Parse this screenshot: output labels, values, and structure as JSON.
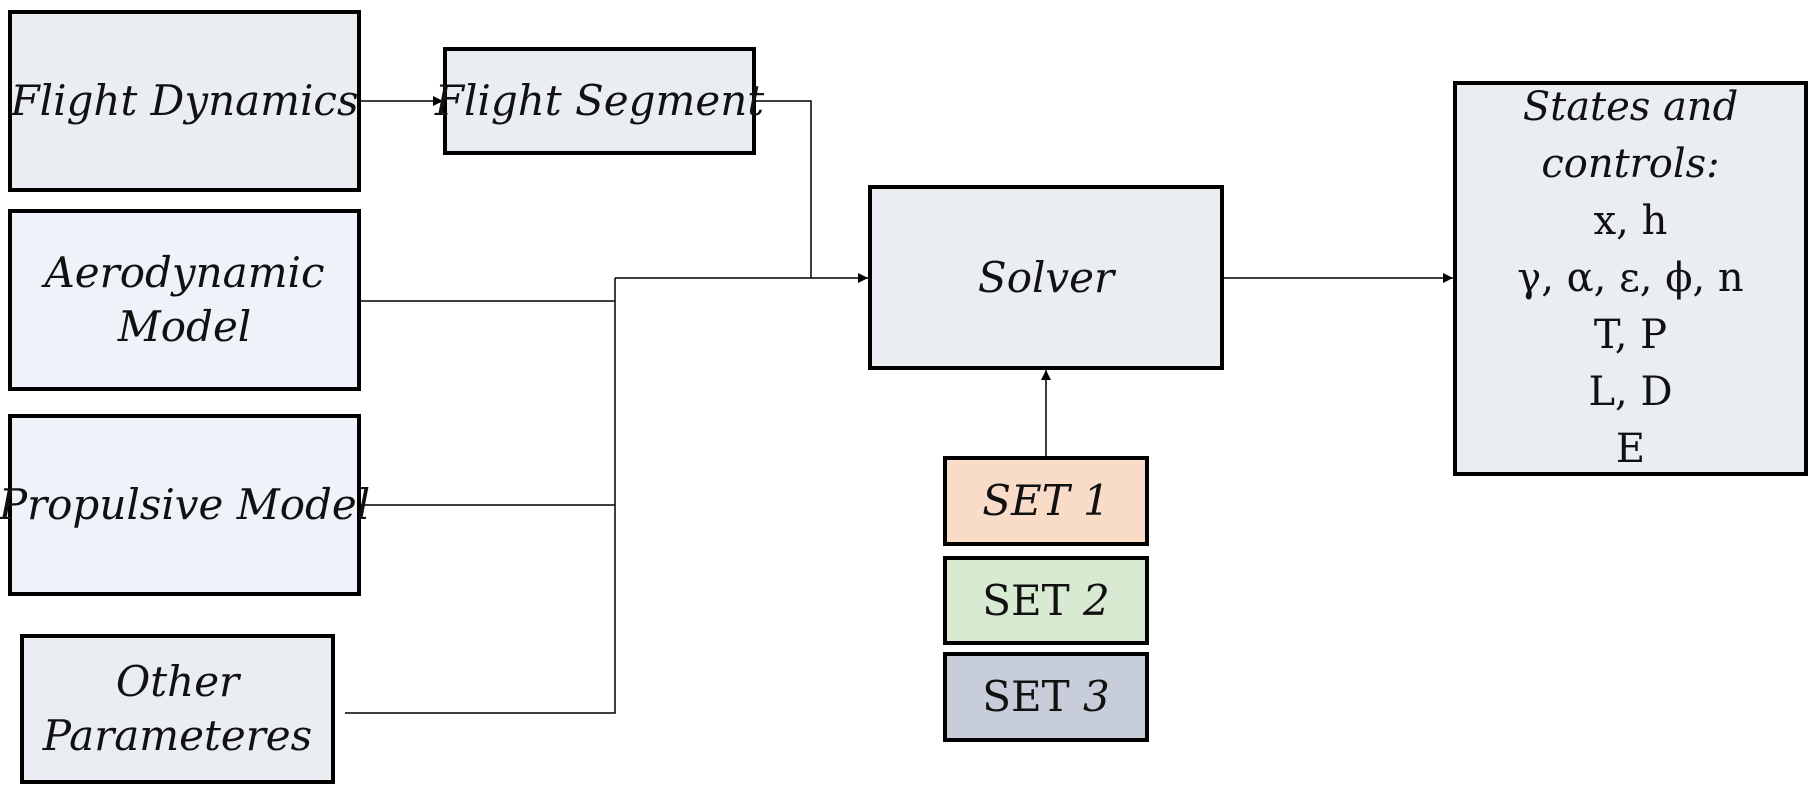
{
  "colors": {
    "gray_box": "#eaedf1",
    "blue_box": "#eef3fa",
    "set1": "#f8dcc8",
    "set2": "#d9ead3",
    "set3": "#c8ced9",
    "stroke": "#000000"
  },
  "boxes": {
    "flight_dynamics": "Flight Dynamics",
    "flight_segment": "Flight Segment",
    "aerodynamic_model": [
      "Aerodynamic",
      "Model"
    ],
    "propulsive_model": "Propulsive Model",
    "other_parameters": [
      "Other",
      "Parameteres"
    ],
    "solver": "Solver"
  },
  "sets": [
    {
      "prefix": "SET ",
      "num": "1"
    },
    {
      "prefix": "SET ",
      "num": "2"
    },
    {
      "prefix": "SET ",
      "num": "3"
    }
  ],
  "states": {
    "header": [
      "States and",
      "controls:"
    ],
    "lines": [
      "x, h",
      "γ, α, ε, ϕ, n",
      "T, P",
      "L, D",
      "E"
    ]
  }
}
